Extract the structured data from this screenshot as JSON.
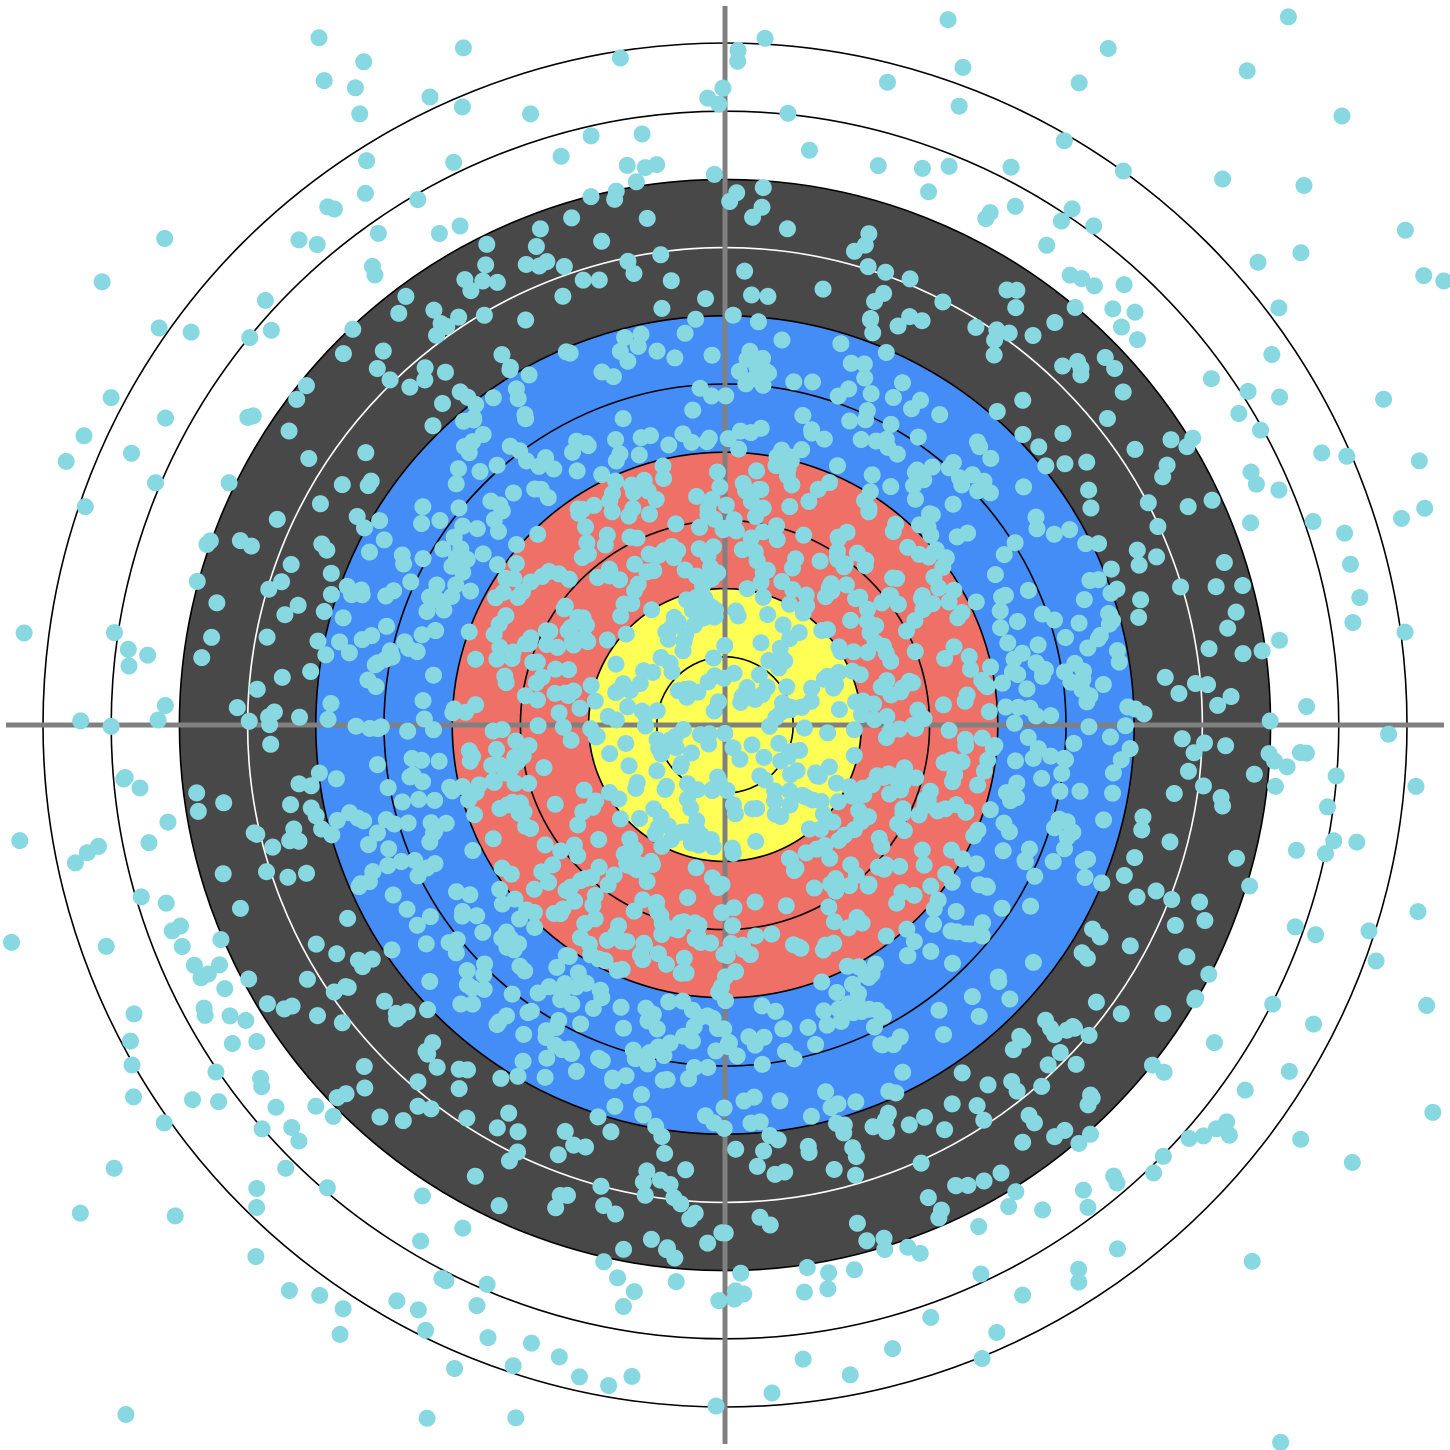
{
  "chart_data": {
    "type": "scatter",
    "title": "",
    "xlabel": "",
    "ylabel": "",
    "xlim": [
      -10.6,
      10.6
    ],
    "ylim": [
      -10.6,
      10.6
    ],
    "grid": false,
    "legend": "none",
    "target": {
      "ring_step": 1,
      "rings": [
        {
          "outer_radius": 2,
          "fill": "#ffff55"
        },
        {
          "outer_radius": 4,
          "fill": "#ee7066"
        },
        {
          "outer_radius": 6,
          "fill": "#448cf6"
        },
        {
          "outer_radius": 8,
          "fill": "#484848"
        },
        {
          "outer_radius": 10,
          "fill": "#ffffff"
        }
      ],
      "dark_ring_line_color": "#ffffff",
      "ring_line_color": "#000000",
      "crosshair_color": "#808080"
    },
    "series": [
      {
        "color": "#88d8e2",
        "generator": {
          "method": "gaussian-2d",
          "count": 2000,
          "seed": 7,
          "sigma": 4.2,
          "center": [
            0.1,
            -0.1
          ]
        }
      }
    ]
  }
}
